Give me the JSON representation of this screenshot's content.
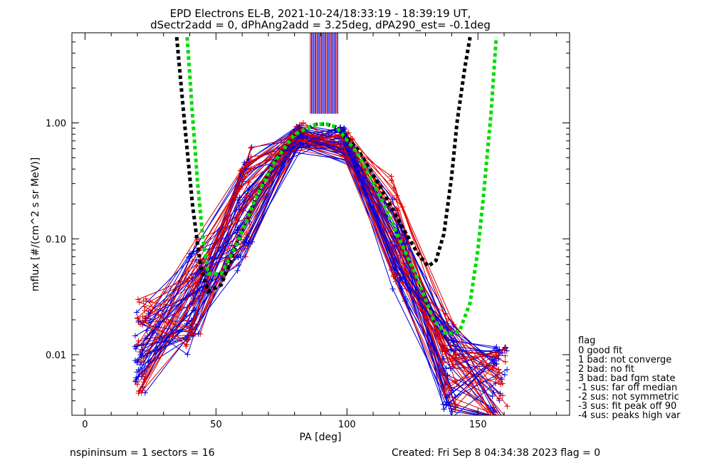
{
  "chart_data": {
    "type": "scatter",
    "title": "EPD Electrons EL-B, 2021-10-24/18:33:19 - 18:39:19 UT,",
    "subtitle": "dSectr2add = 0, dPhAng2add = 3.25deg, dPA290_est=  -0.1deg",
    "xlabel": "PA [deg]",
    "ylabel": "mflux [#/(cm^2 s sr MeV)]",
    "x_ticks": [
      "0",
      "50",
      "100",
      "150"
    ],
    "y_ticks": [
      "0.01",
      "0.10",
      "1.00"
    ],
    "xlim": [
      -5,
      185
    ],
    "ylim": [
      0.003,
      6
    ],
    "yscale": "log",
    "grid": false,
    "colors": {
      "red": "#dd0000",
      "blue": "#0000dd",
      "black": "#000000",
      "green": "#00dd00"
    },
    "fit_curves": [
      {
        "color": "#000000",
        "x": [
          35,
          38,
          41,
          44,
          47,
          52,
          58,
          65,
          72,
          80,
          88,
          92,
          96,
          104,
          112,
          120,
          127,
          131,
          134,
          137,
          140,
          142,
          145,
          147
        ],
        "y": [
          5.5,
          1.0,
          0.2,
          0.06,
          0.035,
          0.04,
          0.09,
          0.22,
          0.45,
          0.8,
          0.97,
          0.98,
          0.92,
          0.6,
          0.3,
          0.14,
          0.075,
          0.058,
          0.065,
          0.11,
          0.35,
          1.0,
          3.0,
          5.5
        ]
      },
      {
        "color": "#00dd00",
        "x": [
          39,
          41,
          43,
          45,
          47,
          52,
          58,
          65,
          72,
          80,
          88,
          92,
          96,
          104,
          112,
          120,
          127,
          133,
          138,
          143,
          147,
          150,
          152,
          155,
          157
        ],
        "y": [
          5.5,
          1.2,
          0.3,
          0.1,
          0.05,
          0.05,
          0.09,
          0.22,
          0.45,
          0.8,
          0.97,
          0.98,
          0.92,
          0.55,
          0.25,
          0.1,
          0.045,
          0.02,
          0.015,
          0.016,
          0.028,
          0.08,
          0.22,
          1.2,
          5.5
        ]
      }
    ],
    "envelope": {
      "x": [
        22,
        30,
        40,
        50,
        60,
        70,
        78,
        85,
        90,
        95,
        100,
        108,
        115,
        122,
        130,
        138,
        145,
        152,
        158
      ],
      "y": [
        0.012,
        0.015,
        0.03,
        0.07,
        0.17,
        0.38,
        0.68,
        0.85,
        0.88,
        0.85,
        0.66,
        0.34,
        0.15,
        0.065,
        0.024,
        0.009,
        0.006,
        0.005,
        0.0045
      ]
    },
    "legend": {
      "title": "flag",
      "entries": [
        " 0 good fit",
        " 1 bad: not converge",
        " 2 bad: no fit",
        " 3 bad: bad fgm state",
        "-1 sus: far off median",
        "-2 sus: not symmetric",
        "-3 sus: fit peak off 90",
        "-4 sus: peaks high var"
      ],
      "position": "right"
    },
    "footer": {
      "left": "nspininsum =  1  sectors = 16",
      "right": "Created: Fri Sep  8 04:34:38 2023   flag = 0"
    }
  }
}
